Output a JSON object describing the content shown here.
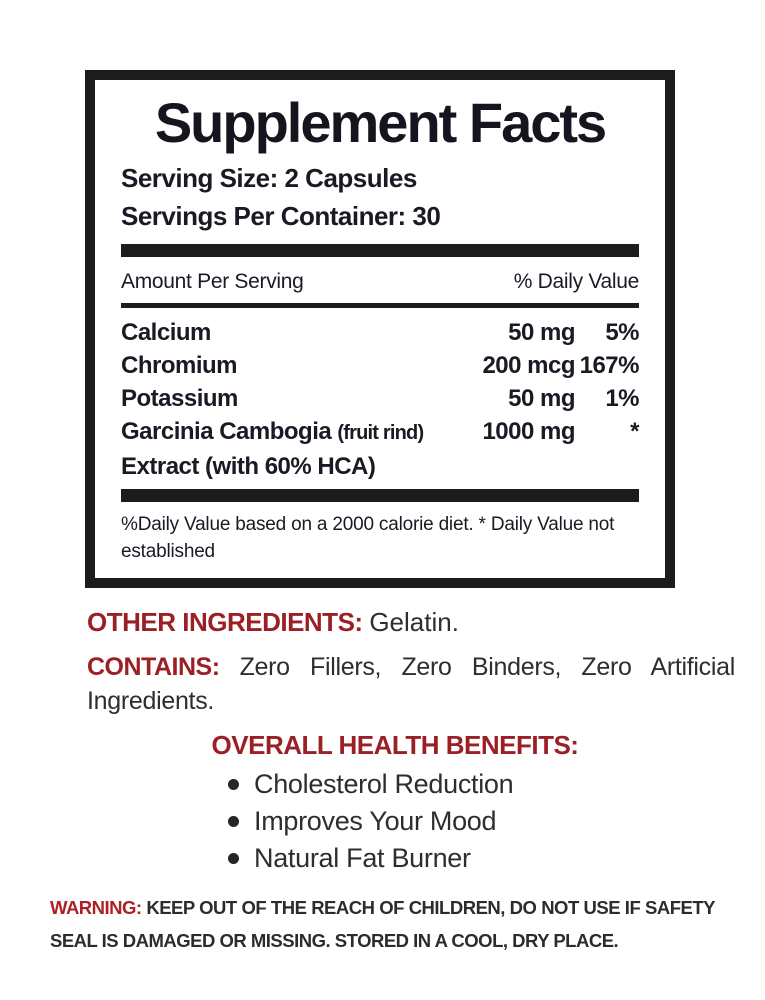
{
  "colors": {
    "label_red": "#9b2025",
    "warning_red": "#ad2026",
    "panel_ink": "#1a1a24",
    "body_ink": "#2e2d2f",
    "rule_black": "#1d1b1c"
  },
  "facts_panel": {
    "title": "Supplement Facts",
    "serving_size": "Serving Size: 2 Capsules",
    "servings_per_container": "Servings Per Container: 30",
    "header": {
      "amount_col": "Amount Per Serving",
      "dv_col": "% Daily Value"
    },
    "rows": [
      {
        "name": "Calcium",
        "amount": "50 mg",
        "dv": "5%"
      },
      {
        "name": "Chromium",
        "amount": "200 mcg",
        "dv": "167%"
      },
      {
        "name": "Potassium",
        "amount": "50 mg",
        "dv": "1%"
      },
      {
        "name": "Garcinia Cambogia ",
        "name_note": "(fruit rind)",
        "name_line2": "Extract (with 60% HCA)",
        "amount": "1000 mg",
        "dv": "*"
      }
    ],
    "footnote": "%Daily Value based on a 2000 calorie diet. * Daily Value not established"
  },
  "other_ingredients": {
    "label": "OTHER INGREDIENTS",
    "separator": ": ",
    "value": "Gelatin."
  },
  "contains": {
    "label": "CONTAINS: ",
    "value": " Zero Fillers, Zero Binders, Zero Artificial Ingredients."
  },
  "benefits": {
    "heading": "OVERALL HEALTH BENEFITS:",
    "items": [
      "Cholesterol Reduction",
      "Improves Your Mood",
      "Natural Fat Burner"
    ]
  },
  "warning": {
    "label": "WARNING: ",
    "text": "KEEP OUT OF THE REACH OF CHILDREN, DO NOT USE IF SAFETY SEAL IS DAMAGED OR MISSING. STORED IN A COOL, DRY PLACE."
  }
}
